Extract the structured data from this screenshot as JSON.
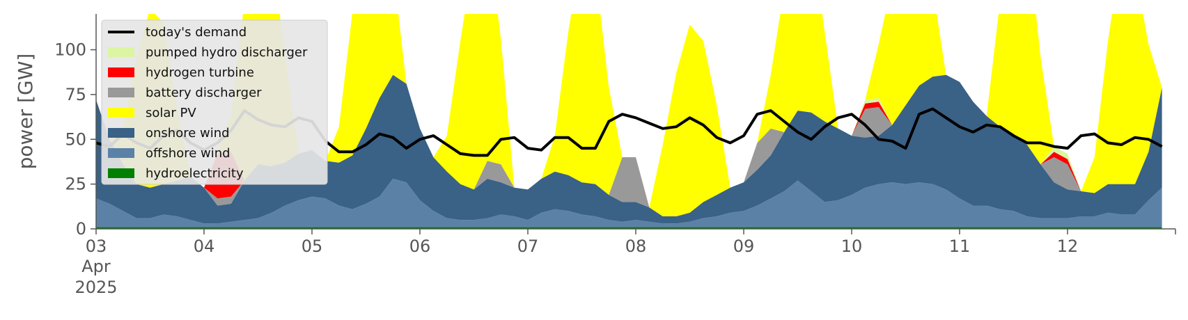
{
  "chart_data": {
    "type": "area",
    "title": "",
    "xlabel": "",
    "ylabel": "power [GW]",
    "ylim": [
      0,
      120
    ],
    "yticks": [
      0,
      25,
      50,
      75,
      100
    ],
    "x_start": "2025-04-03 00:00",
    "x_end": "2025-04-12 23:00",
    "x_step_hours": 3,
    "xtick_labels": [
      {
        "label": "03",
        "sub": [
          "Apr",
          "2025"
        ]
      },
      {
        "label": "04"
      },
      {
        "label": "05"
      },
      {
        "label": "06"
      },
      {
        "label": "07"
      },
      {
        "label": "08"
      },
      {
        "label": "09"
      },
      {
        "label": "10"
      },
      {
        "label": "11"
      },
      {
        "label": "12"
      }
    ],
    "grid": false,
    "legend_position": "upper-left",
    "series": [
      {
        "name": "hydroelectricity",
        "color": "#008000",
        "values": [
          1,
          1,
          1,
          1,
          1,
          1,
          1,
          1,
          1,
          1,
          1,
          1,
          1,
          1,
          1,
          1,
          1,
          1,
          1,
          1,
          1,
          1,
          1,
          1,
          1,
          1,
          1,
          1,
          1,
          1,
          1,
          1,
          1,
          1,
          1,
          1,
          1,
          1,
          1,
          1,
          1,
          1,
          1,
          1,
          1,
          1,
          1,
          1,
          1,
          1,
          1,
          1,
          1,
          1,
          1,
          1,
          1,
          1,
          1,
          1,
          1,
          1,
          1,
          1,
          1,
          1,
          1,
          1,
          1,
          1,
          1,
          1,
          1,
          1,
          1,
          1,
          1,
          1,
          1,
          1
        ]
      },
      {
        "name": "offshore wind",
        "color": "#5b82a6",
        "values": [
          16,
          13,
          9,
          5,
          5,
          7,
          6,
          4,
          2,
          2,
          3,
          4,
          5,
          8,
          12,
          15,
          17,
          16,
          12,
          10,
          13,
          17,
          27,
          25,
          15,
          9,
          5,
          4,
          4,
          5,
          7,
          6,
          4,
          8,
          10,
          9,
          7,
          6,
          4,
          3,
          4,
          3,
          2,
          2,
          3,
          5,
          6,
          8,
          9,
          12,
          16,
          20,
          26,
          20,
          14,
          15,
          18,
          22,
          24,
          25,
          24,
          25,
          24,
          21,
          16,
          12,
          12,
          10,
          9,
          6,
          5,
          5,
          5,
          6,
          6,
          8,
          7,
          7,
          15,
          22
        ]
      },
      {
        "name": "onshore wind",
        "color": "#3a6186",
        "values": [
          55,
          36,
          26,
          19,
          17,
          17,
          20,
          24,
          20,
          10,
          10,
          22,
          30,
          26,
          24,
          26,
          26,
          21,
          24,
          30,
          42,
          55,
          58,
          55,
          40,
          30,
          26,
          20,
          17,
          22,
          18,
          16,
          17,
          19,
          21,
          20,
          18,
          18,
          14,
          11,
          10,
          8,
          4,
          4,
          5,
          9,
          12,
          14,
          16,
          20,
          24,
          33,
          39,
          44,
          45,
          40,
          33,
          28,
          27,
          32,
          44,
          54,
          60,
          64,
          65,
          58,
          50,
          46,
          43,
          40,
          30,
          20,
          16,
          14,
          13,
          16,
          17,
          17,
          27,
          56
        ]
      },
      {
        "name": "battery discharger",
        "color": "#999999",
        "values": [
          0,
          0,
          0,
          0,
          0,
          0,
          0,
          0,
          0,
          4,
          4,
          0,
          0,
          0,
          0,
          0,
          0,
          0,
          0,
          0,
          0,
          0,
          0,
          0,
          0,
          0,
          0,
          0,
          0,
          10,
          10,
          0,
          0,
          0,
          0,
          0,
          0,
          0,
          0,
          25,
          25,
          0,
          0,
          0,
          0,
          0,
          0,
          0,
          0,
          15,
          15,
          0,
          0,
          0,
          0,
          0,
          0,
          16,
          16,
          0,
          0,
          0,
          0,
          0,
          0,
          0,
          0,
          0,
          0,
          0,
          0,
          14,
          14,
          0,
          0,
          0,
          0,
          0,
          0,
          0
        ]
      },
      {
        "name": "hydrogen turbine",
        "color": "#ff0000",
        "values": [
          0,
          0,
          0,
          0,
          0,
          0,
          0,
          0,
          0,
          25,
          25,
          0,
          0,
          0,
          0,
          0,
          0,
          0,
          0,
          0,
          0,
          0,
          0,
          0,
          0,
          0,
          0,
          0,
          0,
          0,
          0,
          0,
          0,
          0,
          0,
          0,
          0,
          0,
          0,
          0,
          0,
          0,
          0,
          0,
          0,
          0,
          0,
          0,
          0,
          0,
          0,
          0,
          0,
          0,
          0,
          0,
          0,
          3,
          3,
          0,
          0,
          0,
          0,
          0,
          0,
          0,
          0,
          0,
          0,
          0,
          0,
          3,
          3,
          0,
          0,
          0,
          0,
          0,
          0,
          0
        ]
      },
      {
        "name": "pumped hydro discharger",
        "color": "#dcf5a3",
        "values": [
          0,
          0,
          0,
          0,
          0,
          0,
          0,
          0,
          0,
          0,
          0,
          0,
          0,
          0,
          0,
          0,
          0,
          0,
          0,
          0,
          0,
          0,
          0,
          0,
          0,
          0,
          0,
          0,
          0,
          0,
          0,
          0,
          0,
          0,
          0,
          0,
          0,
          0,
          0,
          0,
          0,
          0,
          0,
          0,
          0,
          0,
          0,
          0,
          0,
          0,
          0,
          0,
          0,
          0,
          0,
          0,
          0,
          2,
          2,
          0,
          0,
          0,
          0,
          0,
          0,
          0,
          0,
          0,
          0,
          0,
          0,
          3,
          3,
          0,
          0,
          0,
          0,
          0,
          0,
          0
        ]
      },
      {
        "name": "solar PV",
        "color": "#ffff00",
        "values": [
          0,
          0,
          20,
          70,
          100,
          90,
          40,
          0,
          0,
          0,
          20,
          100,
          140,
          120,
          60,
          0,
          0,
          0,
          20,
          80,
          130,
          120,
          60,
          0,
          0,
          0,
          20,
          80,
          130,
          130,
          70,
          0,
          0,
          0,
          20,
          80,
          130,
          120,
          60,
          0,
          0,
          0,
          40,
          80,
          105,
          90,
          50,
          0,
          0,
          0,
          30,
          80,
          110,
          100,
          50,
          0,
          0,
          0,
          30,
          80,
          115,
          100,
          50,
          0,
          0,
          0,
          0,
          70,
          130,
          120,
          60,
          0,
          0,
          0,
          20,
          80,
          130,
          120,
          60,
          0
        ]
      },
      {
        "name": "today's demand",
        "color": "#000000",
        "values": [
          48,
          46,
          53,
          48,
          45,
          52,
          55,
          48,
          44,
          48,
          55,
          66,
          61,
          58,
          57,
          62,
          60,
          49,
          43,
          43,
          47,
          53,
          51,
          45,
          50,
          52,
          47,
          42,
          41,
          41,
          50,
          51,
          45,
          44,
          51,
          51,
          45,
          45,
          60,
          64,
          62,
          59,
          56,
          57,
          62,
          58,
          51,
          48,
          52,
          64,
          66,
          60,
          54,
          50,
          57,
          62,
          64,
          58,
          50,
          49,
          45,
          64,
          67,
          62,
          57,
          54,
          58,
          57,
          52,
          48,
          48,
          46,
          45,
          52,
          53,
          48,
          47,
          51,
          50,
          46
        ]
      }
    ]
  },
  "legend": {
    "items": [
      {
        "label": "today's demand",
        "kind": "line",
        "color": "#000000"
      },
      {
        "label": "pumped hydro discharger",
        "kind": "patch",
        "color": "#dcf5a3"
      },
      {
        "label": "hydrogen turbine",
        "kind": "patch",
        "color": "#ff0000"
      },
      {
        "label": "battery discharger",
        "kind": "patch",
        "color": "#999999"
      },
      {
        "label": "solar PV",
        "kind": "patch",
        "color": "#ffff00"
      },
      {
        "label": "onshore wind",
        "kind": "patch",
        "color": "#3a6186"
      },
      {
        "label": "offshore wind",
        "kind": "patch",
        "color": "#5b82a6"
      },
      {
        "label": "hydroelectricity",
        "kind": "patch",
        "color": "#008000"
      }
    ]
  }
}
